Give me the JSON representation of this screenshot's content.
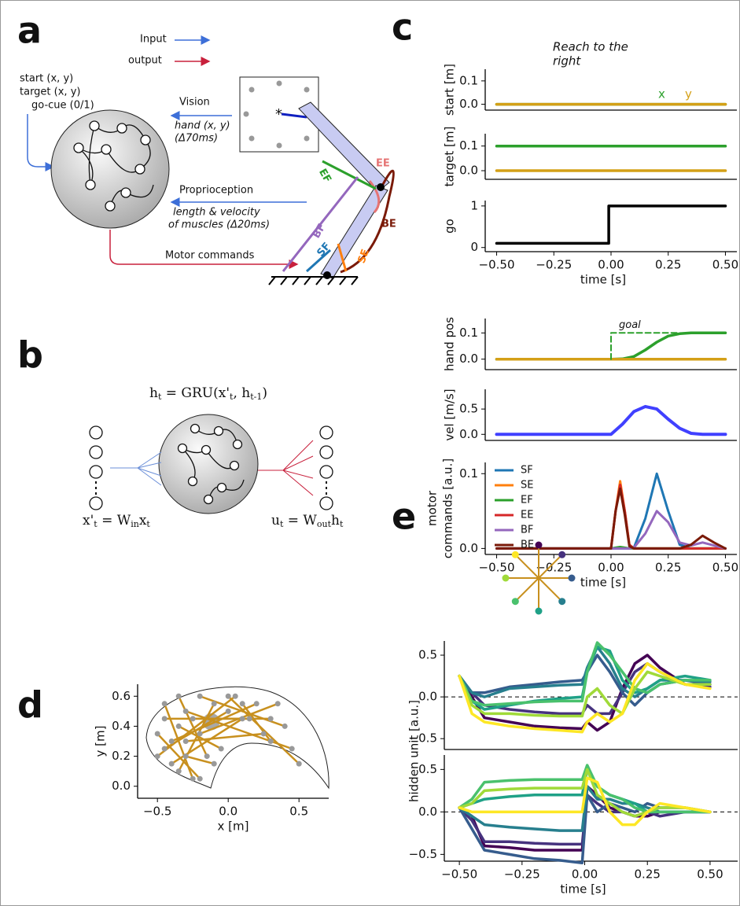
{
  "panel_labels": [
    "a",
    "b",
    "c",
    "d",
    "e"
  ],
  "diagram_a": {
    "input": "Input",
    "output": "output",
    "inputs": [
      "start (x, y)",
      "target (x, y)",
      "go-cue (0/1)"
    ],
    "vision": "Vision",
    "vision_signal": [
      "hand (x, y)",
      "(Δ70ms)"
    ],
    "proprioception": "Proprioception",
    "proprio_signal": [
      "length &  velocity",
      "of muscles (Δ20ms)"
    ],
    "motor": "Motor commands",
    "muscles": [
      "EE",
      "EF",
      "BF",
      "SF",
      "SE",
      "BE"
    ]
  },
  "diagram_b": {
    "gru": [
      "h",
      "t",
      " = GRU(x'",
      "t",
      ", h",
      "t-1",
      ")"
    ],
    "input_eq": [
      "x'",
      "t",
      " = W",
      "in",
      "x",
      "t"
    ],
    "output_eq": [
      "u",
      "t",
      " = W",
      "out",
      "h",
      "t"
    ]
  },
  "chart_data": [
    {
      "type": "line",
      "title": [
        "Reach to the",
        "right"
      ],
      "ylabel": "start [m]",
      "legend": "upper right",
      "xlim": [
        -0.55,
        0.55
      ],
      "ylim": [
        -0.025,
        0.15
      ],
      "yticks": [
        {
          "value": 0,
          "label": "0.0"
        },
        0.1
      ],
      "x": [
        -0.5,
        0.5
      ],
      "series": [
        {
          "name": "x",
          "color": "#2ca02c",
          "values": [
            0,
            0
          ]
        },
        {
          "name": "y",
          "color": "#d4a017",
          "values": [
            0,
            0
          ]
        }
      ]
    },
    {
      "type": "line",
      "ylabel": "target [m]",
      "xlim": [
        -0.55,
        0.55
      ],
      "ylim": [
        -0.035,
        0.15
      ],
      "yticks": [
        {
          "value": 0,
          "label": "0.0"
        },
        0.1
      ],
      "x": [
        -0.5,
        0.5
      ],
      "series": [
        {
          "color": "#2ca02c",
          "values": [
            0.1,
            0.1
          ]
        },
        {
          "color": "#d4a017",
          "values": [
            0,
            0
          ]
        }
      ]
    },
    {
      "type": "line",
      "ylabel": "go",
      "xlabel": "time [s]",
      "xlim": [
        -0.55,
        0.55
      ],
      "ylim": [
        -0.1,
        1.13
      ],
      "yticks": [
        0,
        1
      ],
      "xticks": [
        {
          "value": -0.5,
          "label": "−0.50"
        },
        {
          "value": -0.25,
          "label": "−0.25"
        },
        {
          "value": 0,
          "label": "0.00"
        },
        0.25,
        {
          "value": 0.5,
          "label": "0.50"
        }
      ],
      "x": [
        -0.5,
        -0.01,
        -0.01,
        0.5
      ],
      "series": [
        {
          "color": "#000000",
          "values": [
            0.1,
            0.1,
            1,
            1
          ]
        }
      ]
    },
    {
      "type": "line",
      "ylabel": "hand pos",
      "xlim": [
        -0.55,
        0.55
      ],
      "ylim": [
        -0.04,
        0.155
      ],
      "yticks": [
        {
          "value": 0,
          "label": "0.0"
        },
        0.1
      ],
      "x": [
        -0.5,
        0,
        0.05,
        0.1,
        0.15,
        0.2,
        0.25,
        0.3,
        0.35,
        0.4,
        0.5
      ],
      "series": [
        {
          "color": "#2ca02c",
          "values": [
            0,
            0,
            0.001,
            0.01,
            0.035,
            0.065,
            0.088,
            0.097,
            0.1,
            0.1,
            0.1
          ]
        },
        {
          "color": "#d4a017",
          "values": [
            0,
            0,
            0,
            0,
            0,
            0,
            0,
            0,
            0,
            0,
            0
          ]
        },
        {
          "name": "goal",
          "color": "#2ca02c",
          "dashed": true,
          "x": [
            0,
            0,
            0.3
          ],
          "values": [
            0,
            0.1,
            0.1
          ]
        }
      ]
    },
    {
      "type": "line",
      "ylabel": "vel [m/s]",
      "xlim": [
        -0.55,
        0.55
      ],
      "ylim": [
        -0.12,
        0.89
      ],
      "yticks": [
        {
          "value": 0,
          "label": "0.0"
        },
        0.5
      ],
      "x": [
        -0.5,
        0,
        0.05,
        0.1,
        0.15,
        0.2,
        0.25,
        0.3,
        0.35,
        0.4,
        0.5
      ],
      "series": [
        {
          "color": "#4040ff",
          "values": [
            0,
            0,
            0.2,
            0.45,
            0.55,
            0.5,
            0.3,
            0.12,
            0.02,
            0,
            0
          ]
        }
      ]
    },
    {
      "type": "line",
      "ylabel": [
        "motor",
        "commands [a.u.]"
      ],
      "xlabel": "time [s]",
      "legend": "upper left",
      "xlim": [
        -0.55,
        0.55
      ],
      "ylim": [
        -0.008,
        0.115
      ],
      "yticks": [
        {
          "value": 0,
          "label": "0.0"
        },
        0.1
      ],
      "xticks": [
        {
          "value": -0.5,
          "label": "−0.50"
        },
        {
          "value": -0.25,
          "label": "−0.25"
        },
        {
          "value": 0,
          "label": "0.00"
        },
        0.25,
        {
          "value": 0.5,
          "label": "0.50"
        }
      ],
      "x": [
        -0.5,
        -0.05,
        0,
        0.02,
        0.04,
        0.06,
        0.08,
        0.1,
        0.15,
        0.2,
        0.25,
        0.3,
        0.35,
        0.4,
        0.45,
        0.5
      ],
      "series": [
        {
          "name": "SF",
          "color": "#1f77b4",
          "values": [
            0,
            0,
            0,
            0,
            0,
            0,
            0,
            0.001,
            0.04,
            0.1,
            0.05,
            0.005,
            0,
            0,
            0,
            0
          ]
        },
        {
          "name": "SE",
          "color": "#ff7f0e",
          "values": [
            0,
            0,
            0,
            0.05,
            0.09,
            0.05,
            0.005,
            0,
            0,
            0,
            0,
            0,
            0,
            0,
            0,
            0
          ]
        },
        {
          "name": "EF",
          "color": "#2ca02c",
          "values": [
            0,
            0,
            0,
            0.001,
            0.002,
            0.001,
            0,
            0,
            0,
            0,
            0,
            0,
            0,
            0,
            0,
            0
          ]
        },
        {
          "name": "EE",
          "color": "#d62728",
          "values": [
            0,
            0,
            0,
            0.05,
            0.085,
            0.05,
            0.005,
            0,
            0,
            0,
            0,
            0,
            0,
            0,
            0,
            0
          ]
        },
        {
          "name": "BF",
          "color": "#9467bd",
          "values": [
            0,
            0,
            0,
            0,
            0,
            0,
            0,
            0.001,
            0.02,
            0.05,
            0.035,
            0.008,
            0.004,
            0.008,
            0.004,
            0
          ]
        },
        {
          "name": "BE",
          "color": "#7a1a08",
          "values": [
            0,
            0,
            0,
            0.05,
            0.08,
            0.045,
            0.003,
            0,
            0,
            0,
            0,
            0,
            0.005,
            0.017,
            0.008,
            0
          ]
        }
      ]
    },
    {
      "type": "line",
      "xlabel": "x [m]",
      "ylabel": "y [m]",
      "markers": true,
      "color": "#c8901e",
      "xlim": [
        -0.64,
        0.71
      ],
      "ylim": [
        -0.08,
        0.68
      ],
      "xticks": [
        {
          "value": -0.5,
          "label": "−0.5"
        },
        {
          "value": 0,
          "label": "0.0"
        },
        0.5
      ],
      "yticks": [
        {
          "value": 0,
          "label": "0.0"
        },
        0.2,
        0.4,
        0.6
      ],
      "target_area": {
        "x": -0.12,
        "y": 0.43,
        "r": 0.06
      },
      "series": [
        {
          "x": [
            -0.5,
            0.05
          ],
          "values": [
            0.2,
            0.6
          ]
        },
        {
          "x": [
            -0.45,
            0.3
          ],
          "values": [
            0.45,
            0.45
          ]
        },
        {
          "x": [
            -0.4,
            0.2
          ],
          "values": [
            0.3,
            0.55
          ]
        },
        {
          "x": [
            -0.35,
            -0.1
          ],
          "values": [
            0.1,
            0.55
          ]
        },
        {
          "x": [
            -0.3,
            0.45
          ],
          "values": [
            0.5,
            0.25
          ]
        },
        {
          "x": [
            -0.5,
            -0.2
          ],
          "values": [
            0.35,
            0.05
          ]
        },
        {
          "x": [
            -0.2,
            0.4
          ],
          "values": [
            0.6,
            0.4
          ]
        },
        {
          "x": [
            -0.4,
            0.1
          ],
          "values": [
            0.15,
            0.45
          ]
        },
        {
          "x": [
            -0.25,
            -0.45
          ],
          "values": [
            0.05,
            0.55
          ]
        },
        {
          "x": [
            0,
            0.5
          ],
          "values": [
            0.6,
            0.15
          ]
        },
        {
          "x": [
            -0.3,
            0.25
          ],
          "values": [
            0.3,
            0.35
          ]
        },
        {
          "x": [
            -0.15,
            -0.35
          ],
          "values": [
            0.2,
            0.6
          ]
        },
        {
          "x": [
            -0.45,
            0
          ],
          "values": [
            0.25,
            0.5
          ]
        },
        {
          "x": [
            0.1,
            0.3
          ],
          "values": [
            0.55,
            0.3
          ]
        },
        {
          "x": [
            -0.35,
            -0.05
          ],
          "values": [
            0.4,
            0.25
          ]
        },
        {
          "x": [
            -0.2,
            0.35
          ],
          "values": [
            0.35,
            0.55
          ]
        },
        {
          "x": [
            -0.1,
            -0.3
          ],
          "values": [
            0.15,
            0.2
          ]
        },
        {
          "x": [
            0.15,
            -0.25
          ],
          "values": [
            0.45,
            0.45
          ]
        }
      ]
    },
    {
      "type": "line",
      "ylabel": "hidden unit [a.u.]",
      "hline": 0,
      "xlim": [
        -0.56,
        0.61
      ],
      "ylim": [
        -0.63,
        0.67
      ],
      "yticks": [
        {
          "value": -0.5,
          "label": "−0.5"
        },
        {
          "value": 0,
          "label": "0.0"
        },
        0.5
      ],
      "x": [
        -0.5,
        -0.45,
        -0.4,
        -0.3,
        -0.2,
        -0.1,
        -0.01,
        0.01,
        0.05,
        0.1,
        0.15,
        0.2,
        0.25,
        0.3,
        0.4,
        0.5
      ],
      "series": [
        {
          "color": "#440154",
          "values": [
            0.25,
            0,
            -0.25,
            -0.3,
            -0.35,
            -0.37,
            -0.38,
            -0.3,
            -0.4,
            -0.3,
            0.1,
            0.4,
            0.5,
            0.35,
            0.15,
            0.15
          ]
        },
        {
          "color": "#46327e",
          "values": [
            0.25,
            0.05,
            -0.1,
            -0.15,
            -0.18,
            -0.2,
            -0.2,
            -0.1,
            -0.2,
            -0.2,
            0.05,
            0.3,
            0.4,
            0.3,
            0.15,
            0.12
          ]
        },
        {
          "color": "#365c8d",
          "values": [
            0.25,
            0.05,
            0.05,
            0.12,
            0.15,
            0.18,
            0.2,
            0.3,
            0.5,
            0.3,
            0.05,
            -0.1,
            0.05,
            0.15,
            0.2,
            0.15
          ]
        },
        {
          "color": "#277f8e",
          "values": [
            0.25,
            0.05,
            0,
            0.1,
            0.12,
            0.14,
            0.15,
            0.35,
            0.6,
            0.4,
            0.1,
            0,
            0.1,
            0.2,
            0.2,
            0.18
          ]
        },
        {
          "color": "#1fa187",
          "values": [
            0.25,
            -0.05,
            -0.15,
            -0.1,
            -0.05,
            -0.02,
            0,
            0.3,
            0.6,
            0.55,
            0.2,
            0.05,
            0.1,
            0.2,
            0.25,
            0.2
          ]
        },
        {
          "color": "#4ac16d",
          "values": [
            0.25,
            -0.05,
            -0.1,
            -0.08,
            -0.06,
            -0.05,
            -0.05,
            0.3,
            0.65,
            0.5,
            0.3,
            0.1,
            0.05,
            0.15,
            0.2,
            0.2
          ]
        },
        {
          "color": "#a0da39",
          "values": [
            0.25,
            -0.1,
            -0.2,
            -0.2,
            -0.22,
            -0.23,
            -0.23,
            0,
            0.1,
            -0.1,
            -0.2,
            0.1,
            0.3,
            0.25,
            0.15,
            0.15
          ]
        },
        {
          "color": "#fde725",
          "values": [
            0.25,
            -0.2,
            -0.3,
            -0.35,
            -0.38,
            -0.4,
            -0.42,
            -0.3,
            -0.2,
            -0.3,
            -0.2,
            0.2,
            0.4,
            0.3,
            0.15,
            0.1
          ]
        }
      ]
    },
    {
      "type": "line",
      "xlabel": "time [s]",
      "hline": 0,
      "xlim": [
        -0.56,
        0.61
      ],
      "ylim": [
        -0.58,
        0.67
      ],
      "yticks": [
        {
          "value": -0.5,
          "label": "−0.5"
        },
        {
          "value": 0,
          "label": "0.0"
        },
        0.5
      ],
      "xticks": [
        {
          "value": -0.5,
          "label": "−0.50"
        },
        {
          "value": -0.25,
          "label": "−0.25"
        },
        {
          "value": 0,
          "label": "0.00"
        },
        0.25,
        {
          "value": 0.5,
          "label": "0.50"
        }
      ],
      "x": [
        -0.5,
        -0.45,
        -0.4,
        -0.3,
        -0.2,
        -0.1,
        -0.01,
        0.01,
        0.05,
        0.1,
        0.15,
        0.2,
        0.25,
        0.3,
        0.4,
        0.5
      ],
      "series": [
        {
          "color": "#440154",
          "values": [
            0.05,
            -0.05,
            -0.4,
            -0.42,
            -0.45,
            -0.45,
            -0.45,
            0.3,
            0.2,
            0.05,
            0,
            -0.05,
            -0.05,
            0,
            0,
            0
          ]
        },
        {
          "color": "#46327e",
          "values": [
            0.05,
            -0.1,
            -0.35,
            -0.35,
            -0.37,
            -0.38,
            -0.38,
            0.2,
            0.1,
            0,
            0,
            -0.05,
            0,
            -0.05,
            0,
            0
          ]
        },
        {
          "color": "#365c8d",
          "values": [
            0.05,
            -0.2,
            -0.45,
            -0.5,
            -0.55,
            -0.57,
            -0.6,
            0.2,
            0,
            0.1,
            0.05,
            0,
            0.1,
            0.05,
            0.05,
            0
          ]
        },
        {
          "color": "#277f8e",
          "values": [
            0.05,
            -0.05,
            -0.15,
            -0.18,
            -0.2,
            -0.22,
            -0.22,
            0.3,
            0.15,
            0.15,
            0.1,
            0.1,
            0.05,
            0,
            0,
            0
          ]
        },
        {
          "color": "#1fa187",
          "values": [
            0.05,
            0.1,
            0.15,
            0.18,
            0.2,
            0.2,
            0.2,
            0.5,
            0.3,
            0.2,
            0.15,
            0.1,
            0,
            0,
            0,
            0
          ]
        },
        {
          "color": "#4ac16d",
          "values": [
            0.05,
            0.15,
            0.35,
            0.37,
            0.38,
            0.38,
            0.38,
            0.55,
            0.3,
            0.2,
            0.15,
            0.05,
            0,
            0,
            0,
            0
          ]
        },
        {
          "color": "#a0da39",
          "values": [
            0.05,
            0.1,
            0.25,
            0.27,
            0.28,
            0.28,
            0.28,
            0.5,
            0.2,
            0.1,
            0,
            -0.05,
            0,
            0.05,
            0.05,
            0
          ]
        },
        {
          "color": "#fde725",
          "values": [
            0.05,
            0,
            0,
            0,
            0,
            0,
            0,
            0.4,
            0.35,
            0,
            -0.15,
            -0.15,
            0,
            0.1,
            0.05,
            0
          ]
        }
      ]
    }
  ]
}
